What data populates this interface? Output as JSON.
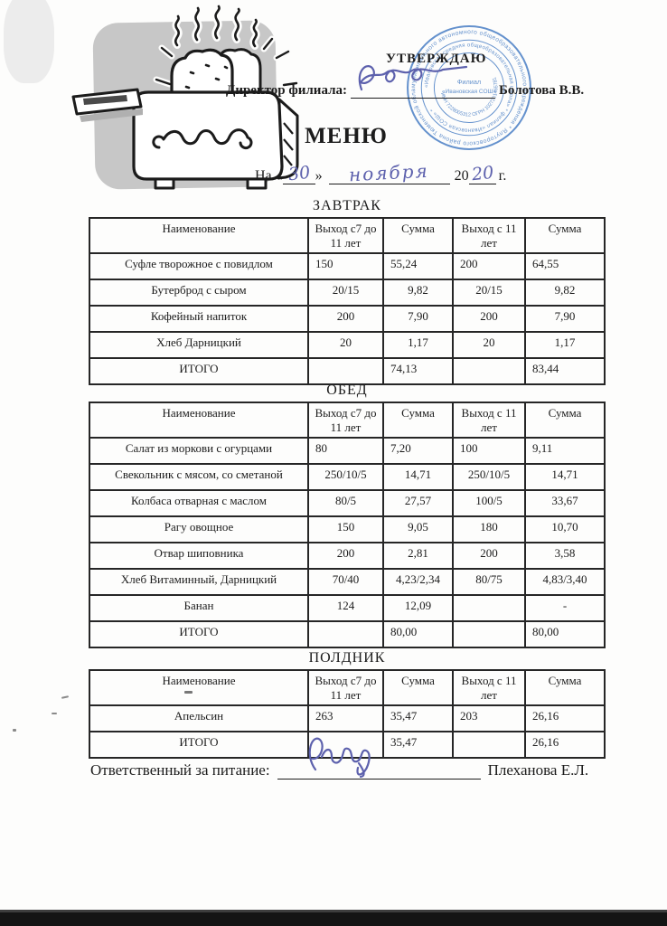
{
  "header": {
    "approve": "УТВЕРЖДАЮ",
    "director_label": "Директор филиала:",
    "director_name": "Болотова В.В.",
    "title": "МЕНЮ",
    "date_prefix": "На «",
    "date_day": "30",
    "date_quote_close": "»",
    "date_month": "ноября",
    "date_year_printed": "20",
    "date_year_handwritten": "20",
    "date_suffix": "г."
  },
  "stamp": {
    "color": "#4a7fc5",
    "center_line1": "Филиал",
    "center_line2": "«Ивановская СОШ»",
    "ring_outer": "муниципального автономного общеобразовательного учреждения * Ялуторовского района Тюменской области *",
    "ring_middle": "«Ивановская средняя общеобразовательная школа» * филиал «Ивановская СОШ» *",
    "ring_numbers": "ИНН 7228005312 ОГРН 1027201465781"
  },
  "ink_color": "#5d61ad",
  "tables": [
    {
      "title": "ЗАВТРАК",
      "headers": [
        "Наименование",
        "Выход с7 до 11 лет",
        "Сумма",
        "Выход с 11 лет",
        "Сумма"
      ],
      "rows": [
        [
          "Суфле творожное с повидлом",
          "150",
          "55,24",
          "200",
          "64,55"
        ],
        [
          "Бутерброд с сыром",
          "20/15",
          "9,82",
          "20/15",
          "9,82"
        ],
        [
          "Кофейный напиток",
          "200",
          "7,90",
          "200",
          "7,90"
        ],
        [
          "Хлеб Дарницкий",
          "20",
          "1,17",
          "20",
          "1,17"
        ],
        [
          "ИТОГО",
          "",
          "74,13",
          "",
          "83,44"
        ]
      ]
    },
    {
      "title": "ОБЕД",
      "headers": [
        "Наименование",
        "Выход с7 до 11 лет",
        "Сумма",
        "Выход с 11 лет",
        "Сумма"
      ],
      "rows": [
        [
          "Салат из моркови с огурцами",
          "80",
          "7,20",
          "100",
          "9,11"
        ],
        [
          "Свекольник с мясом, со сметаной",
          "250/10/5",
          "14,71",
          "250/10/5",
          "14,71"
        ],
        [
          "Колбаса отварная с маслом",
          "80/5",
          "27,57",
          "100/5",
          "33,67"
        ],
        [
          "Рагу овощное",
          "150",
          "9,05",
          "180",
          "10,70"
        ],
        [
          "Отвар шиповника",
          "200",
          "2,81",
          "200",
          "3,58"
        ],
        [
          "Хлеб Витаминный, Дарницкий",
          "70/40",
          "4,23/2,34",
          "80/75",
          "4,83/3,40"
        ],
        [
          "Банан",
          "124",
          "12,09",
          "",
          "-"
        ],
        [
          "ИТОГО",
          "",
          "80,00",
          "",
          "80,00"
        ]
      ]
    },
    {
      "title": "ПОЛДНИК",
      "headers": [
        "Наименование",
        "Выход с7 до 11 лет",
        "Сумма",
        "Выход с 11 лет",
        "Сумма"
      ],
      "rows": [
        [
          "Апельсин",
          "263",
          "35,47",
          "203",
          "26,16"
        ],
        [
          "ИТОГО",
          "",
          "35,47",
          "",
          "26,16"
        ]
      ]
    }
  ],
  "footer": {
    "label": "Ответственный за питание:",
    "name": "Плеханова Е.Л."
  }
}
